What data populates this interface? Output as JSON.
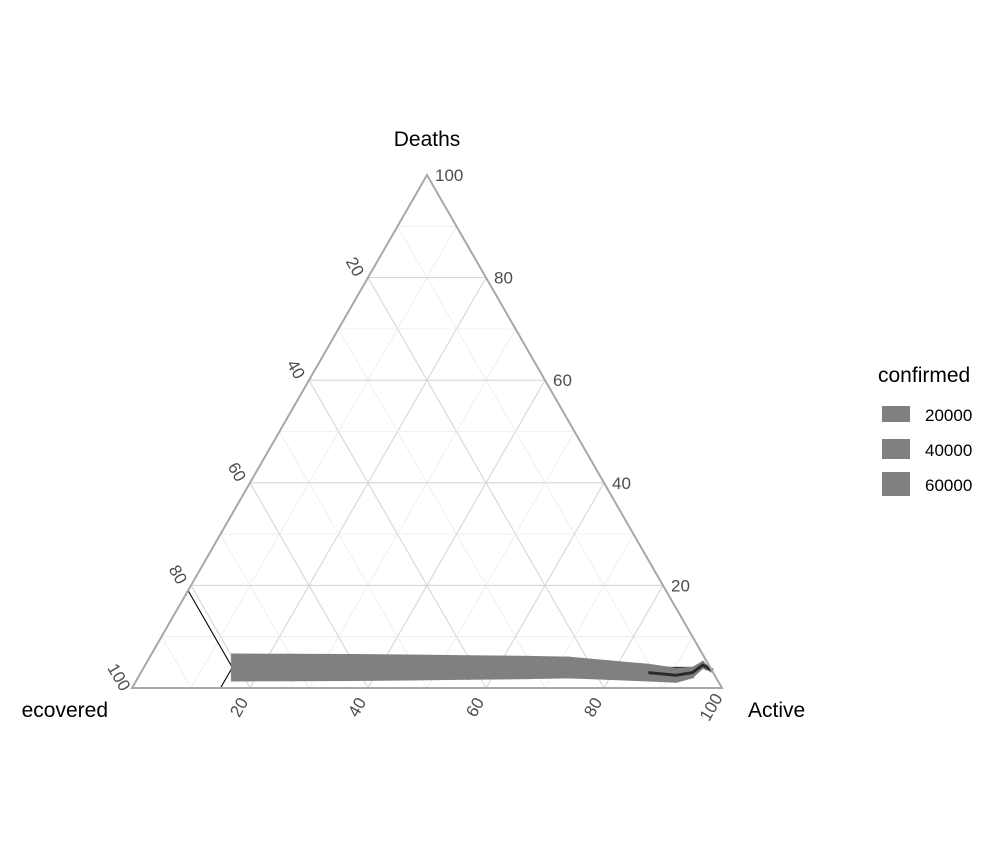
{
  "chart_data": {
    "type": "ternary",
    "axes": {
      "top": {
        "label": "Deaths",
        "ticks": [
          20,
          40,
          60,
          80,
          100
        ]
      },
      "left": {
        "label": "ecovered",
        "ticks": [
          20,
          40,
          60,
          80,
          100
        ]
      },
      "right": {
        "label": "Active",
        "ticks": [
          20,
          40,
          60,
          80,
          100
        ]
      }
    },
    "grid": true,
    "legend": {
      "title": "confirmed",
      "position": "right",
      "entries": [
        "20000",
        "40000",
        "60000"
      ]
    },
    "series_color": "#808080",
    "path_color": "#2a2a2a",
    "reference_point": {
      "Active": 15,
      "Deaths": 4,
      "Recovered": 81
    },
    "series": [
      {
        "points": [
          {
            "Active": 15,
            "Deaths": 4,
            "Recovered": 81,
            "confirmed": 70000
          },
          {
            "Active": 25,
            "Deaths": 4,
            "Recovered": 71,
            "confirmed": 69000
          },
          {
            "Active": 35,
            "Deaths": 4,
            "Recovered": 61,
            "confirmed": 67000
          },
          {
            "Active": 45,
            "Deaths": 4,
            "Recovered": 51,
            "confirmed": 64000
          },
          {
            "Active": 55,
            "Deaths": 4,
            "Recovered": 41,
            "confirmed": 60000
          },
          {
            "Active": 65,
            "Deaths": 4,
            "Recovered": 31,
            "confirmed": 56000
          },
          {
            "Active": 72,
            "Deaths": 4,
            "Recovered": 24,
            "confirmed": 52000
          },
          {
            "Active": 79,
            "Deaths": 3.5,
            "Recovered": 17.5,
            "confirmed": 46000
          },
          {
            "Active": 86,
            "Deaths": 3,
            "Recovered": 11,
            "confirmed": 40000
          },
          {
            "Active": 91,
            "Deaths": 2.5,
            "Recovered": 6.5,
            "confirmed": 32000
          },
          {
            "Active": 93.5,
            "Deaths": 3,
            "Recovered": 3.5,
            "confirmed": 22000
          },
          {
            "Active": 94.5,
            "Deaths": 4.5,
            "Recovered": 1,
            "confirmed": 12000
          },
          {
            "Active": 96.5,
            "Deaths": 4,
            "Recovered": 0.5,
            "confirmed": 5000
          },
          {
            "Active": 97.5,
            "Deaths": 3.5,
            "Recovered": 0,
            "confirmed": 1500
          }
        ]
      }
    ]
  }
}
